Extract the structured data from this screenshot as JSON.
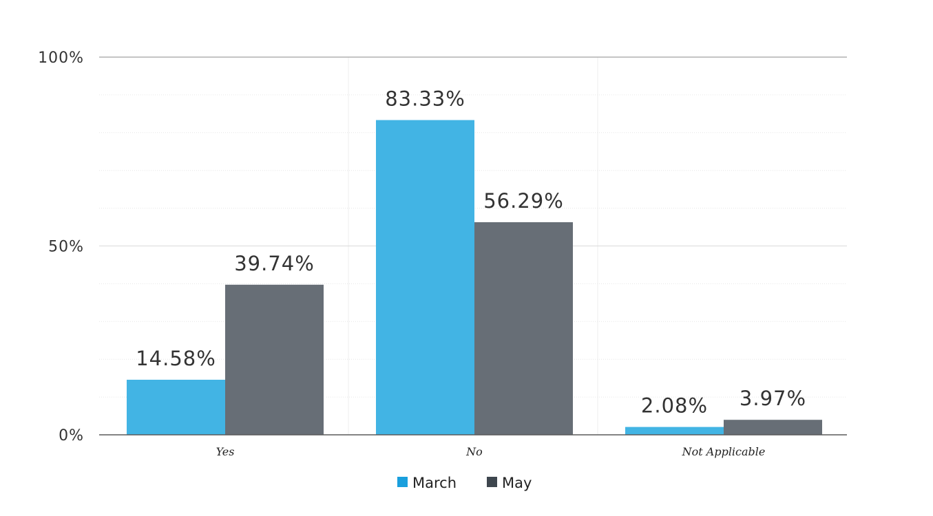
{
  "chart_data": {
    "type": "bar",
    "categories": [
      "Yes",
      "No",
      "Not Applicable"
    ],
    "series": [
      {
        "name": "March",
        "values": [
          14.58,
          83.33,
          2.08
        ],
        "labels": [
          "14.58%",
          "83.33%",
          "2.08%"
        ],
        "color": "#42b4e4",
        "legend_color": "#1a9fdd"
      },
      {
        "name": "May",
        "values": [
          39.74,
          56.29,
          3.97
        ],
        "labels": [
          "39.74%",
          "56.29%",
          "3.97%"
        ],
        "color": "#676e76",
        "legend_color": "#3e464e"
      }
    ],
    "ylim": [
      0,
      100
    ],
    "y_ticks": [
      0,
      50,
      100
    ],
    "y_tick_labels": [
      "0%",
      "50%",
      "100%"
    ],
    "grid": true,
    "legend": "bottom-center"
  }
}
